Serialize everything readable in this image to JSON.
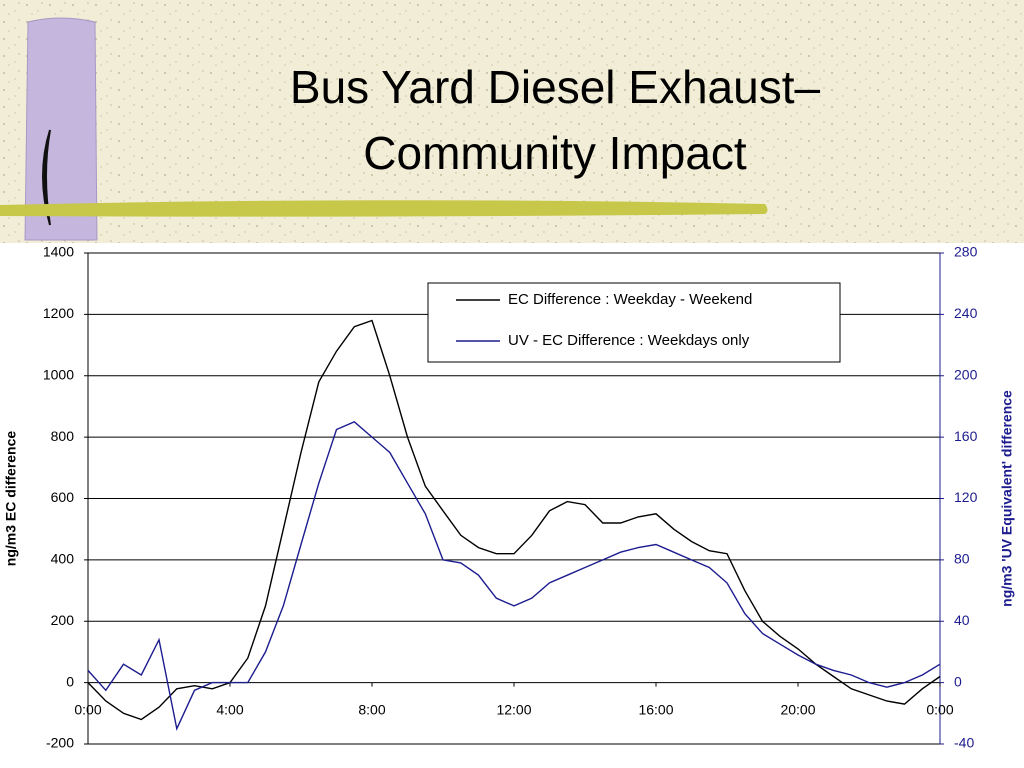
{
  "slide_title": [
    "Bus Yard Diesel Exhaust–",
    "Community Impact"
  ],
  "chart_data": {
    "type": "line",
    "y_label": "ng/m3 EC difference",
    "y2_label": "ng/m3 'UV Equivalent' difference",
    "x": [
      0,
      0.5,
      1,
      1.5,
      2,
      2.5,
      3,
      3.5,
      4,
      4.5,
      5,
      5.5,
      6,
      6.5,
      7,
      7.5,
      8,
      8.5,
      9,
      9.5,
      10,
      10.5,
      11,
      11.5,
      12,
      12.5,
      13,
      13.5,
      14,
      14.5,
      15,
      15.5,
      16,
      16.5,
      17,
      17.5,
      18,
      18.5,
      19,
      19.5,
      20,
      20.5,
      21,
      21.5,
      22,
      22.5,
      23,
      23.5,
      24
    ],
    "series": [
      {
        "name": "EC Difference : Weekday - Weekend",
        "color": "#000000",
        "values": [
          0,
          -60,
          -100,
          -120,
          -80,
          -20,
          -10,
          -20,
          0,
          80,
          250,
          500,
          750,
          980,
          1080,
          1160,
          1180,
          1000,
          800,
          640,
          560,
          480,
          440,
          420,
          420,
          480,
          560,
          590,
          580,
          520,
          520,
          540,
          550,
          500,
          460,
          430,
          420,
          300,
          200,
          150,
          110,
          60,
          20,
          -20,
          -40,
          -60,
          -70,
          -20,
          20
        ]
      },
      {
        "name": "UV - EC Difference : Weekdays only",
        "color": "#1c1c8f",
        "axis": "y2",
        "values": [
          8,
          -5,
          12,
          5,
          28,
          -30,
          -5,
          0,
          0,
          0,
          20,
          50,
          90,
          130,
          165,
          170,
          160,
          150,
          130,
          110,
          80,
          78,
          70,
          55,
          50,
          55,
          65,
          70,
          75,
          80,
          85,
          88,
          90,
          85,
          80,
          75,
          65,
          45,
          32,
          25,
          18,
          12,
          8,
          5,
          0,
          -3,
          0,
          5,
          12
        ]
      }
    ],
    "xlim": [
      0,
      24
    ],
    "xticks": [
      {
        "value": 0,
        "label": "0:00"
      },
      {
        "value": 4,
        "label": "4:00"
      },
      {
        "value": 8,
        "label": "8:00"
      },
      {
        "value": 12,
        "label": "12:00"
      },
      {
        "value": 16,
        "label": "16:00"
      },
      {
        "value": 20,
        "label": "20:00"
      },
      {
        "value": 24,
        "label": "0:00"
      }
    ],
    "ylim": [
      -200,
      1400
    ],
    "yticks": [
      -200,
      0,
      200,
      400,
      600,
      800,
      1000,
      1200,
      1400
    ],
    "y2lim": [
      -40,
      280
    ],
    "y2ticks": [
      -40,
      0,
      40,
      80,
      120,
      160,
      200,
      240,
      280
    ],
    "y2_color": "#1c1c8f",
    "grid": true
  }
}
